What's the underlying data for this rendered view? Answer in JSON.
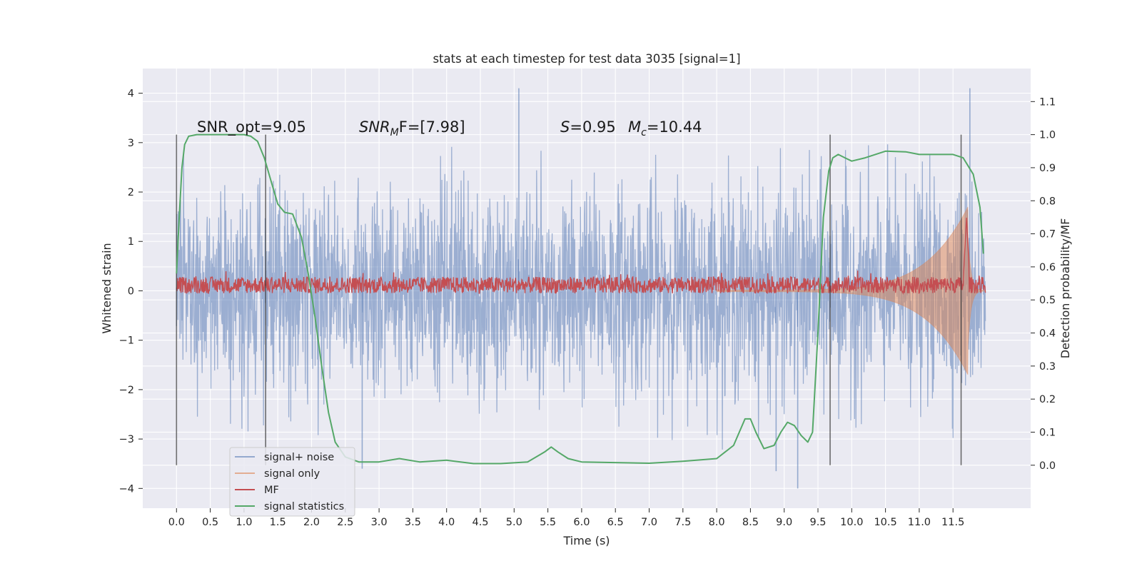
{
  "chart_data": {
    "type": "line",
    "title": "stats at each timestep for test data 3035 [signal=1]",
    "xlabel": "Time (s)",
    "ylabel": "Whitened strain",
    "ylabel_right": "Detection probability/MF",
    "xlim": [
      -0.5,
      12.65
    ],
    "ylim": [
      -4.4,
      4.5
    ],
    "ylim_right": [
      -0.13,
      1.2
    ],
    "x_ticks": [
      "0.0",
      "0.5",
      "1.0",
      "1.5",
      "2.0",
      "2.5",
      "3.0",
      "3.5",
      "4.0",
      "4.5",
      "5.0",
      "5.5",
      "6.0",
      "6.5",
      "7.0",
      "7.5",
      "8.0",
      "8.5",
      "9.0",
      "9.5",
      "10.0",
      "10.5",
      "11.0",
      "11.5"
    ],
    "y_ticks_left": [
      "4",
      "3",
      "2",
      "1",
      "0",
      "−1",
      "−2",
      "−3",
      "−4"
    ],
    "y_ticks_right": [
      "1.1",
      "1.0",
      "0.9",
      "0.8",
      "0.7",
      "0.6",
      "0.5",
      "0.4",
      "0.3",
      "0.2",
      "0.1",
      "0.0"
    ],
    "grid": true,
    "legend_position": "lower-left",
    "annotations": {
      "snr_opt": "SNR_opt=9.05",
      "snr_mf_symbol": "SNR",
      "snr_mf_sub": "M",
      "snr_mf_rest": "F=[7.98]",
      "s_symbol": "S",
      "s_rest": "=0.95",
      "mc_symbol": "M",
      "mc_sub": "c",
      "mc_rest": "=10.44"
    },
    "vlines_x": [
      0.0,
      1.32,
      9.68,
      11.62
    ],
    "series": [
      {
        "name": "signal+ noise",
        "color": "#4c72b0",
        "description_values": "noise-dominated strain, envelope approx [-2, 2] with spikes to +4.1 and -4.0",
        "x_range": [
          0.0,
          11.98
        ],
        "envelope": [
          -2.0,
          2.0
        ],
        "spikes": [
          [
            5.07,
            4.1
          ],
          [
            11.75,
            4.1
          ],
          [
            9.2,
            -4.0
          ],
          [
            2.75,
            -3.6
          ],
          [
            8.88,
            -3.65
          ]
        ]
      },
      {
        "name": "signal only",
        "color": "#dd8452",
        "x_range": [
          8.0,
          11.98
        ],
        "envelope_start": 0.02,
        "envelope_peak": 1.7,
        "peak_x": 11.72
      },
      {
        "name": "MF",
        "color": "#c44e52",
        "x_range": [
          0.0,
          11.98
        ],
        "axis": "right",
        "band": [
          0.52,
          0.57
        ],
        "spike_x": 11.7,
        "spike_value": 0.75
      },
      {
        "name": "signal statistics",
        "color": "#55a868",
        "axis": "right",
        "x": [
          0.0,
          0.04,
          0.08,
          0.12,
          0.18,
          0.3,
          0.5,
          0.8,
          1.0,
          1.1,
          1.2,
          1.3,
          1.4,
          1.5,
          1.6,
          1.72,
          1.85,
          1.95,
          2.05,
          2.15,
          2.25,
          2.35,
          2.5,
          2.7,
          3.0,
          3.3,
          3.6,
          4.0,
          4.4,
          4.8,
          5.2,
          5.45,
          5.55,
          5.65,
          5.8,
          6.0,
          6.5,
          7.0,
          7.5,
          8.0,
          8.25,
          8.42,
          8.5,
          8.58,
          8.7,
          8.85,
          8.95,
          9.05,
          9.15,
          9.25,
          9.35,
          9.42,
          9.5,
          9.58,
          9.66,
          9.72,
          9.8,
          9.9,
          10.0,
          10.2,
          10.5,
          10.8,
          11.0,
          11.3,
          11.5,
          11.65,
          11.8,
          11.9,
          11.95
        ],
        "values": [
          0.58,
          0.75,
          0.9,
          0.97,
          0.995,
          1.0,
          1.0,
          1.0,
          1.0,
          0.995,
          0.98,
          0.93,
          0.86,
          0.79,
          0.765,
          0.76,
          0.69,
          0.58,
          0.45,
          0.3,
          0.16,
          0.07,
          0.025,
          0.01,
          0.01,
          0.02,
          0.01,
          0.015,
          0.005,
          0.005,
          0.01,
          0.04,
          0.055,
          0.04,
          0.02,
          0.01,
          0.008,
          0.006,
          0.012,
          0.02,
          0.06,
          0.14,
          0.14,
          0.1,
          0.05,
          0.06,
          0.1,
          0.13,
          0.12,
          0.09,
          0.07,
          0.1,
          0.4,
          0.75,
          0.89,
          0.93,
          0.94,
          0.93,
          0.92,
          0.93,
          0.95,
          0.948,
          0.94,
          0.94,
          0.94,
          0.93,
          0.88,
          0.78,
          0.64
        ]
      }
    ]
  }
}
